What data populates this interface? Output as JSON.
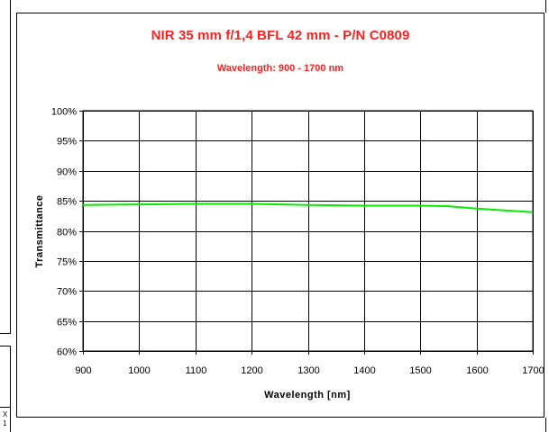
{
  "chart_data": {
    "type": "line",
    "title": "NIR 35 mm f/1,4 BFL 42 mm - P/N C0809",
    "subtitle": "Wavelength: 900 - 1700 nm",
    "xlabel": "Wavelength [nm]",
    "ylabel": "Transmittance",
    "xlim": [
      900,
      1700
    ],
    "ylim": [
      60,
      100
    ],
    "x_ticks": [
      900,
      1000,
      1100,
      1200,
      1300,
      1400,
      1500,
      1600,
      1700
    ],
    "y_ticks": [
      "60%",
      "65%",
      "70%",
      "75%",
      "80%",
      "85%",
      "90%",
      "95%",
      "100%"
    ],
    "grid": true,
    "legend": "none",
    "series": [
      {
        "color": "#00ee00",
        "x": [
          900,
          1000,
          1100,
          1200,
          1300,
          1400,
          1500,
          1550,
          1600,
          1650,
          1700
        ],
        "values": [
          84.3,
          84.4,
          84.5,
          84.5,
          84.3,
          84.2,
          84.2,
          84.1,
          83.7,
          83.4,
          83.1
        ]
      }
    ]
  },
  "corner": {
    "text_top": "X",
    "text_bottom": "1"
  }
}
